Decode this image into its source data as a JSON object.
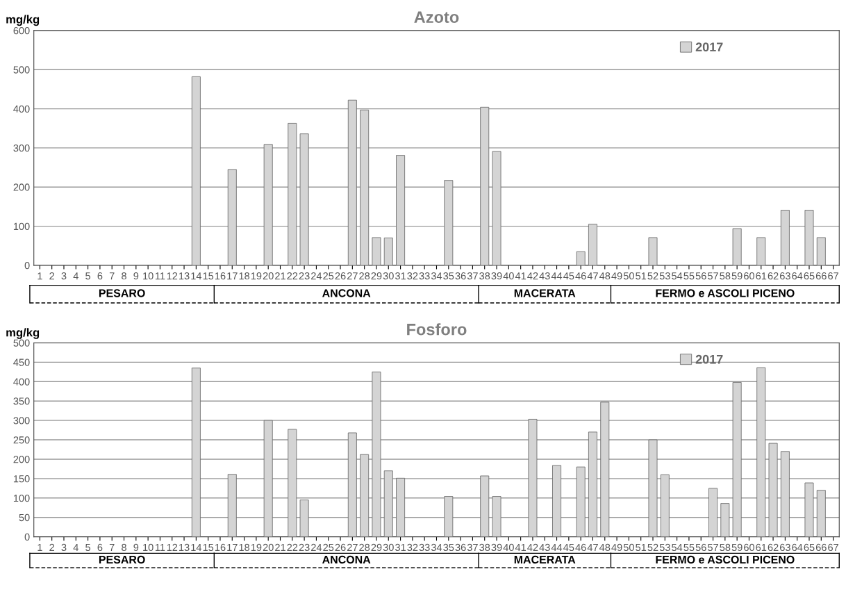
{
  "chart_data": [
    {
      "type": "bar",
      "title": "Azoto",
      "ylabel": "mg/kg",
      "categories": [
        "1",
        "2",
        "3",
        "4",
        "5",
        "6",
        "7",
        "8",
        "9",
        "10",
        "11",
        "12",
        "13",
        "14",
        "15",
        "16",
        "17",
        "18",
        "19",
        "20",
        "21",
        "22",
        "23",
        "24",
        "25",
        "26",
        "27",
        "28",
        "29",
        "30",
        "31",
        "32",
        "33",
        "34",
        "35",
        "36",
        "37",
        "38",
        "39",
        "40",
        "41",
        "42",
        "43",
        "44",
        "45",
        "46",
        "47",
        "48",
        "49",
        "50",
        "51",
        "52",
        "53",
        "54",
        "55",
        "56",
        "57",
        "58",
        "59",
        "60",
        "61",
        "62",
        "63",
        "64",
        "65",
        "66",
        "67"
      ],
      "series": [
        {
          "name": "2017",
          "color": "#d4d4d4",
          "values": [
            null,
            null,
            null,
            null,
            null,
            null,
            null,
            null,
            null,
            null,
            null,
            null,
            null,
            482,
            null,
            null,
            245,
            null,
            null,
            309,
            null,
            363,
            336,
            null,
            null,
            null,
            422,
            397,
            71,
            70,
            281,
            null,
            null,
            null,
            217,
            null,
            null,
            404,
            291,
            null,
            null,
            null,
            null,
            null,
            null,
            35,
            105,
            null,
            null,
            null,
            null,
            71,
            null,
            null,
            null,
            null,
            null,
            null,
            94,
            null,
            71,
            null,
            141,
            null,
            141,
            71,
            null
          ]
        }
      ],
      "ylim": [
        0,
        600
      ],
      "yticks": [
        0,
        100,
        200,
        300,
        400,
        500,
        600
      ],
      "grid": "y",
      "legend": "top right",
      "annotations": [
        "PESARO",
        "ANCONA",
        "MACERATA",
        "FERMO e ASCOLI PICENO"
      ]
    },
    {
      "type": "bar",
      "title": "Fosforo",
      "ylabel": "mg/kg",
      "categories": [
        "1",
        "2",
        "3",
        "4",
        "5",
        "6",
        "7",
        "8",
        "9",
        "10",
        "11",
        "12",
        "13",
        "14",
        "15",
        "16",
        "17",
        "18",
        "19",
        "20",
        "21",
        "22",
        "23",
        "24",
        "25",
        "26",
        "27",
        "28",
        "29",
        "30",
        "31",
        "32",
        "33",
        "34",
        "35",
        "36",
        "37",
        "38",
        "39",
        "40",
        "41",
        "42",
        "43",
        "44",
        "45",
        "46",
        "47",
        "48",
        "49",
        "50",
        "51",
        "52",
        "53",
        "54",
        "55",
        "56",
        "57",
        "58",
        "59",
        "60",
        "61",
        "62",
        "63",
        "64",
        "65",
        "66",
        "67"
      ],
      "series": [
        {
          "name": "2017",
          "color": "#d4d4d4",
          "values": [
            null,
            null,
            null,
            null,
            null,
            null,
            null,
            null,
            null,
            null,
            null,
            null,
            null,
            435,
            null,
            null,
            161,
            null,
            null,
            300,
            null,
            277,
            95,
            null,
            null,
            null,
            268,
            212,
            425,
            170,
            151,
            null,
            null,
            null,
            104,
            null,
            null,
            157,
            104,
            null,
            null,
            303,
            null,
            184,
            null,
            180,
            270,
            347,
            null,
            null,
            null,
            250,
            160,
            null,
            null,
            null,
            125,
            86,
            398,
            null,
            436,
            241,
            220,
            null,
            139,
            120,
            null
          ]
        }
      ],
      "ylim": [
        0,
        500
      ],
      "yticks": [
        0,
        50,
        100,
        150,
        200,
        250,
        300,
        350,
        400,
        450,
        500
      ],
      "grid": "y",
      "legend": "top right",
      "annotations": [
        "PESARO",
        "ANCONA",
        "MACERATA",
        "FERMO e ASCOLI PICENO"
      ]
    }
  ]
}
